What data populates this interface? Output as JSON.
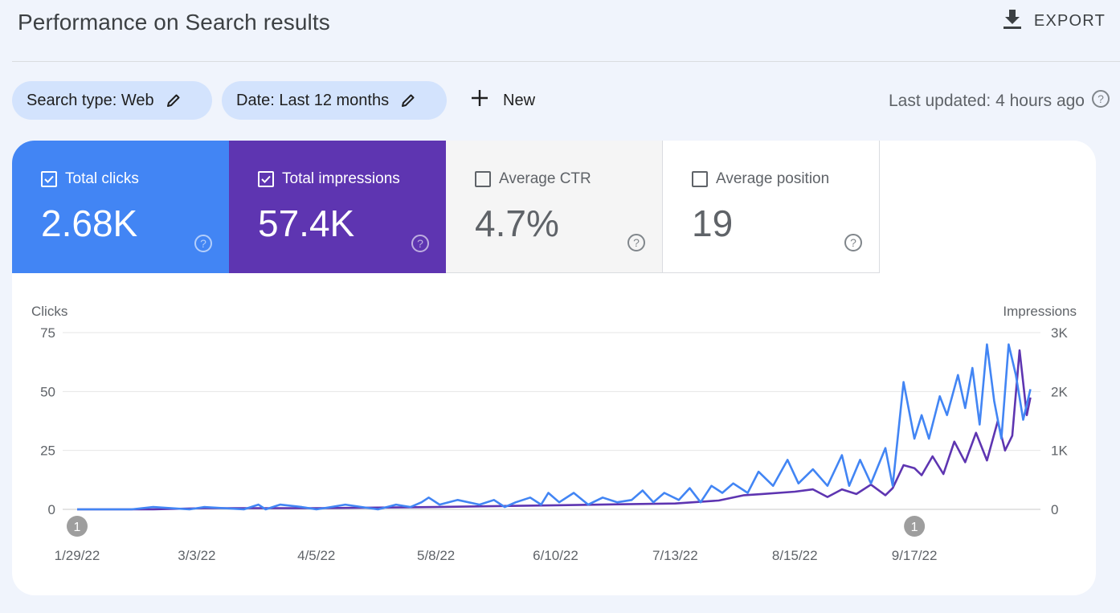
{
  "header": {
    "title": "Performance on Search results",
    "export_label": "EXPORT"
  },
  "filters": {
    "search_type": "Search type: Web",
    "date": "Date: Last 12 months",
    "new_label": "New",
    "last_updated": "Last updated: 4 hours ago"
  },
  "metrics": [
    {
      "label": "Total clicks",
      "value": "2.68K",
      "checked": true,
      "color": "#4285f4"
    },
    {
      "label": "Total impressions",
      "value": "57.4K",
      "checked": true,
      "color": "#5e35b1"
    },
    {
      "label": "Average CTR",
      "value": "4.7%",
      "checked": false
    },
    {
      "label": "Average position",
      "value": "19",
      "checked": false
    }
  ],
  "chart_data": {
    "type": "line",
    "y_left_label": "Clicks",
    "y_right_label": "Impressions",
    "y_left_ticks": [
      "75",
      "50",
      "25",
      "0"
    ],
    "y_right_ticks": [
      "3K",
      "2K",
      "1K",
      "0"
    ],
    "ylim_left": [
      0,
      75
    ],
    "ylim_right": [
      0,
      3000
    ],
    "x_tick_labels": [
      "1/29/22",
      "3/3/22",
      "4/5/22",
      "5/8/22",
      "6/10/22",
      "7/13/22",
      "8/15/22",
      "9/17/22"
    ],
    "annotations": [
      {
        "label": "1",
        "date": "1/29/22"
      },
      {
        "label": "1",
        "date": "9/17/22"
      }
    ],
    "grid": true,
    "series": [
      {
        "name": "Total clicks",
        "axis": "left",
        "color": "#4285f4",
        "points": [
          [
            "1/29/22",
            0
          ],
          [
            "2/13/22",
            0
          ],
          [
            "2/19/22",
            1
          ],
          [
            "3/1/22",
            0
          ],
          [
            "3/5/22",
            1
          ],
          [
            "3/16/22",
            0
          ],
          [
            "3/20/22",
            2
          ],
          [
            "3/22/22",
            0
          ],
          [
            "3/26/22",
            2
          ],
          [
            "4/1/22",
            1
          ],
          [
            "4/5/22",
            0
          ],
          [
            "4/9/22",
            1
          ],
          [
            "4/13/22",
            2
          ],
          [
            "4/22/22",
            0
          ],
          [
            "4/27/22",
            2
          ],
          [
            "5/1/22",
            1
          ],
          [
            "5/4/22",
            3
          ],
          [
            "5/6/22",
            5
          ],
          [
            "5/9/22",
            2
          ],
          [
            "5/14/22",
            4
          ],
          [
            "5/20/22",
            2
          ],
          [
            "5/24/22",
            4
          ],
          [
            "5/27/22",
            1
          ],
          [
            "5/30/22",
            3
          ],
          [
            "6/3/22",
            5
          ],
          [
            "6/6/22",
            2
          ],
          [
            "6/8/22",
            7
          ],
          [
            "6/11/22",
            3
          ],
          [
            "6/15/22",
            7
          ],
          [
            "6/19/22",
            2
          ],
          [
            "6/23/22",
            5
          ],
          [
            "6/27/22",
            3
          ],
          [
            "7/1/22",
            4
          ],
          [
            "7/4/22",
            8
          ],
          [
            "7/7/22",
            3
          ],
          [
            "7/10/22",
            7
          ],
          [
            "7/14/22",
            4
          ],
          [
            "7/17/22",
            9
          ],
          [
            "7/20/22",
            3
          ],
          [
            "7/23/22",
            10
          ],
          [
            "7/26/22",
            7
          ],
          [
            "7/29/22",
            11
          ],
          [
            "8/2/22",
            7
          ],
          [
            "8/5/22",
            16
          ],
          [
            "8/9/22",
            10
          ],
          [
            "8/13/22",
            21
          ],
          [
            "8/16/22",
            11
          ],
          [
            "8/20/22",
            17
          ],
          [
            "8/24/22",
            10
          ],
          [
            "8/28/22",
            23
          ],
          [
            "8/30/22",
            10
          ],
          [
            "9/2/22",
            21
          ],
          [
            "9/5/22",
            11
          ],
          [
            "9/9/22",
            26
          ],
          [
            "9/11/22",
            10
          ],
          [
            "9/14/22",
            54
          ],
          [
            "9/17/22",
            30
          ],
          [
            "9/19/22",
            40
          ],
          [
            "9/21/22",
            30
          ],
          [
            "9/24/22",
            48
          ],
          [
            "9/26/22",
            40
          ],
          [
            "9/29/22",
            57
          ],
          [
            "10/1/22",
            43
          ],
          [
            "10/3/22",
            60
          ],
          [
            "10/5/22",
            36
          ],
          [
            "10/7/22",
            70
          ],
          [
            "10/9/22",
            46
          ],
          [
            "10/11/22",
            30
          ],
          [
            "10/13/22",
            70
          ],
          [
            "10/15/22",
            57
          ],
          [
            "10/17/22",
            38
          ],
          [
            "10/19/22",
            51
          ]
        ]
      },
      {
        "name": "Total impressions",
        "axis": "right",
        "color": "#5e35b1",
        "points": [
          [
            "1/29/22",
            0
          ],
          [
            "2/19/22",
            0
          ],
          [
            "3/5/22",
            20
          ],
          [
            "4/5/22",
            20
          ],
          [
            "5/8/22",
            40
          ],
          [
            "6/10/22",
            70
          ],
          [
            "7/13/22",
            100
          ],
          [
            "7/25/22",
            150
          ],
          [
            "8/1/22",
            240
          ],
          [
            "8/6/22",
            260
          ],
          [
            "8/15/22",
            300
          ],
          [
            "8/20/22",
            340
          ],
          [
            "8/24/22",
            210
          ],
          [
            "8/28/22",
            340
          ],
          [
            "9/1/22",
            260
          ],
          [
            "9/5/22",
            420
          ],
          [
            "9/9/22",
            240
          ],
          [
            "9/11/22",
            360
          ],
          [
            "9/14/22",
            750
          ],
          [
            "9/17/22",
            700
          ],
          [
            "9/19/22",
            580
          ],
          [
            "9/22/22",
            900
          ],
          [
            "9/25/22",
            600
          ],
          [
            "9/28/22",
            1150
          ],
          [
            "10/1/22",
            800
          ],
          [
            "10/4/22",
            1300
          ],
          [
            "10/7/22",
            830
          ],
          [
            "10/10/22",
            1500
          ],
          [
            "10/12/22",
            1000
          ],
          [
            "10/14/22",
            1250
          ],
          [
            "10/16/22",
            2700
          ],
          [
            "10/18/22",
            1600
          ],
          [
            "10/19/22",
            1900
          ]
        ]
      }
    ]
  }
}
